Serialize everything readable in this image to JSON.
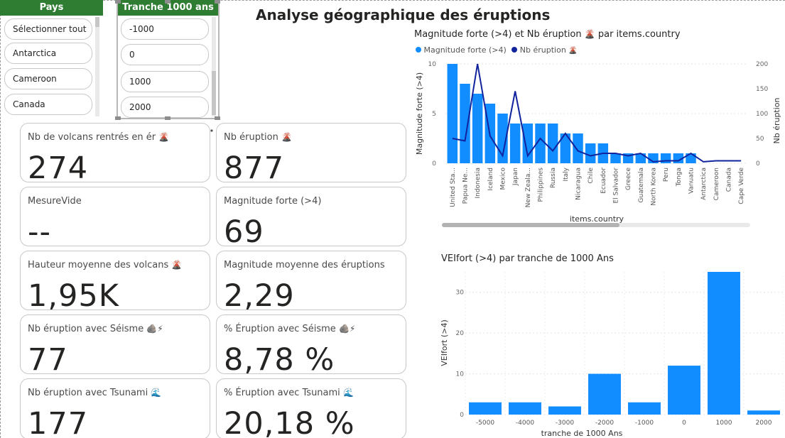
{
  "page": {
    "title": "Analyse géographique des éruptions"
  },
  "slicer_pays": {
    "header": "Pays",
    "items": [
      "Sélectionner tout",
      "Antarctica",
      "Cameroon",
      "Canada"
    ]
  },
  "slicer_tranche": {
    "header": "Tranche 1000 ans",
    "items": [
      "-1000",
      "0",
      "1000",
      "2000"
    ]
  },
  "icons": {
    "filter": "filter-icon",
    "eraser": "eraser-icon",
    "more": "more-options-icon"
  },
  "kpis": [
    {
      "label": "Nb de volcans rentrés en ér",
      "icon": "volcano-icon",
      "value": "274"
    },
    {
      "label": "Nb éruption",
      "icon": "volcano-icon",
      "value": "877"
    },
    {
      "label": "MesureVide",
      "value": "--"
    },
    {
      "label": "Magnitude forte (>4)",
      "value": "69"
    },
    {
      "label": "Hauteur moyenne des volcans",
      "icon": "volcano-icon",
      "value": "1,95K"
    },
    {
      "label": "Magnitude moyenne des éruptions",
      "value": "2,29"
    },
    {
      "label": "Nb éruption avec Séisme",
      "icon": "rock-lightning-icon",
      "value": "77"
    },
    {
      "label": "% Éruption avec Séisme",
      "icon": "rock-lightning-icon",
      "value": "8,78 %"
    },
    {
      "label": "Nb éruption avec Tsunami",
      "icon": "wave-icon",
      "value": "177"
    },
    {
      "label": "% Éruption avec Tsunami",
      "icon": "wave-icon",
      "value": "20,18 %"
    }
  ],
  "colors": {
    "bar": "#118dff",
    "line": "#12239e",
    "slicer_header": "#2e7d32"
  },
  "chart_data": [
    {
      "type": "bar",
      "title": "Magnitude forte (>4) et Nb éruption",
      "title_suffix": "par items.country",
      "xlabel": "items.country",
      "ylabel": "Magnitude forte (>4)",
      "y2label": "Nb éruption",
      "ylim": [
        0,
        10
      ],
      "y2lim": [
        0,
        200
      ],
      "yticks": [
        0,
        5,
        10
      ],
      "y2ticks": [
        0,
        50,
        100,
        150,
        200
      ],
      "legend_position": "top-left",
      "categories": [
        "United Sta...",
        "Papua Ne...",
        "Indonesia",
        "Iceland",
        "Mexico",
        "Japan",
        "New Zeala...",
        "Philippines",
        "Russia",
        "Italy",
        "Nicaragua",
        "Chile",
        "Ecuador",
        "El Salvador",
        "Greece",
        "Guatemala",
        "North Korea",
        "Peru",
        "Tonga",
        "Vanuatu",
        "Antarctica",
        "Cameroon",
        "Canada",
        "Cape Verde"
      ],
      "series": [
        {
          "name": "Magnitude forte (>4)",
          "kind": "bar",
          "axis": "left",
          "values": [
            10,
            8,
            7,
            6,
            5,
            4,
            4,
            4,
            4,
            3,
            3,
            2,
            2,
            1,
            1,
            1,
            1,
            1,
            1,
            1,
            0,
            0,
            0,
            0
          ]
        },
        {
          "name": "Nb éruption",
          "kind": "line",
          "axis": "right",
          "values": [
            50,
            45,
            200,
            55,
            15,
            145,
            15,
            50,
            25,
            60,
            25,
            15,
            20,
            20,
            15,
            20,
            3,
            5,
            5,
            20,
            3,
            5,
            5,
            5
          ]
        }
      ]
    },
    {
      "type": "bar",
      "title": "VEIfort (>4) par tranche de 1000 Ans",
      "xlabel": "tranche de 1000 Ans",
      "ylabel": "VEIfort (>4)",
      "ylim": [
        0,
        35
      ],
      "yticks": [
        0,
        10,
        20,
        30
      ],
      "categories": [
        "-5000",
        "-4000",
        "-3000",
        "-2000",
        "-1000",
        "0",
        "1000",
        "2000"
      ],
      "values": [
        3,
        3,
        2,
        10,
        3,
        12,
        35,
        1
      ]
    }
  ]
}
